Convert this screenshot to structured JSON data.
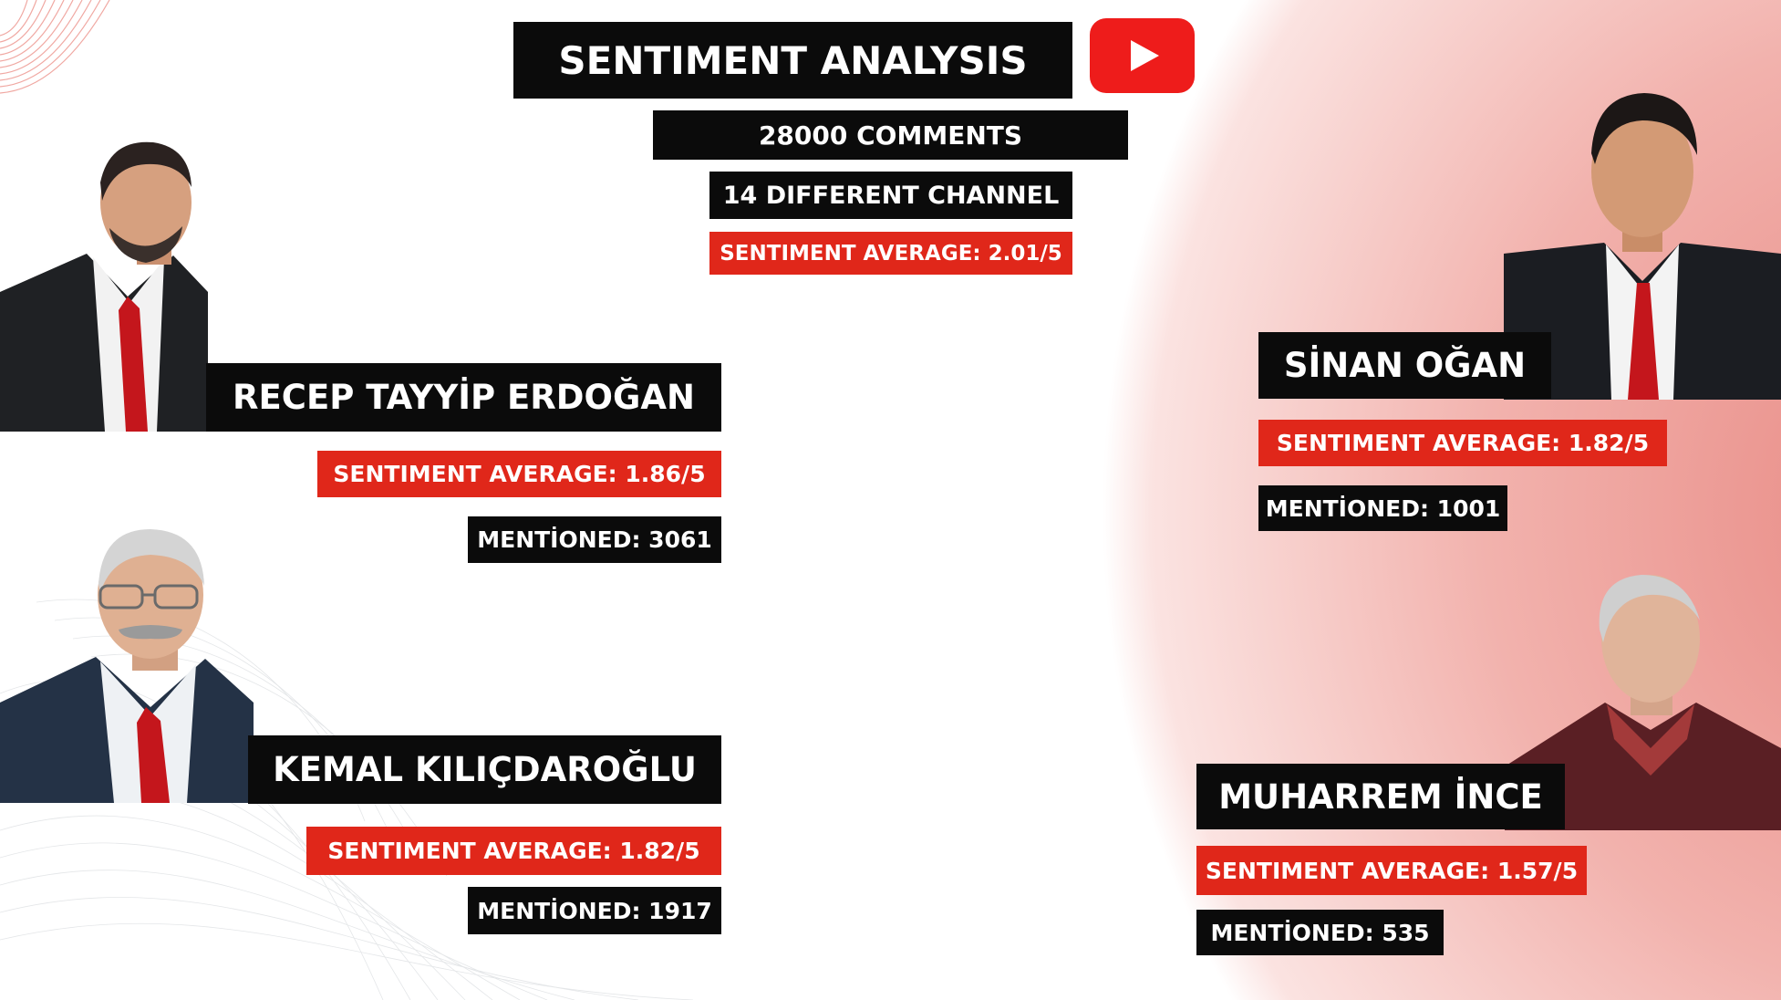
{
  "header": {
    "title": "SENTIMENT ANALYSIS",
    "comments": "28000 COMMENTS",
    "channels": "14 DIFFERENT CHANNEL",
    "overall_sentiment": "SENTIMENT AVERAGE: 2.01/5",
    "platform_icon": "youtube-play-icon"
  },
  "candidates": [
    {
      "name": "RECEP TAYYİP ERDOĞAN",
      "sentiment": "SENTIMENT AVERAGE: 1.86/5",
      "mentioned": "MENTİONED: 3061"
    },
    {
      "name": "KEMAL KILIÇDAROĞLU",
      "sentiment": "SENTIMENT AVERAGE: 1.82/5",
      "mentioned": "MENTİONED: 1917"
    },
    {
      "name": "SİNAN OĞAN",
      "sentiment": "SENTIMENT AVERAGE: 1.82/5",
      "mentioned": "MENTİONED: 1001"
    },
    {
      "name": "MUHARREM İNCE",
      "sentiment": "SENTIMENT AVERAGE: 1.57/5",
      "mentioned": "MENTİONED: 535"
    }
  ],
  "colors": {
    "label_black": "#0b0b0b",
    "label_red": "#e0271a",
    "youtube_red": "#ee1c1b",
    "gradient_pink": "#f2b2ad"
  }
}
